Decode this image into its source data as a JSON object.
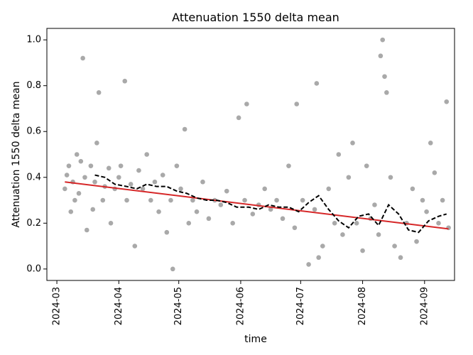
{
  "chart_data": {
    "type": "scatter",
    "title": "Attenuation 1550 delta mean",
    "xlabel": "time",
    "ylabel": "Attenuation 1550 delta mean",
    "x_tick_labels": [
      "2024-03",
      "2024-04",
      "2024-05",
      "2024-06",
      "2024-07",
      "2024-08",
      "2024-09"
    ],
    "x_ticks": [
      "2024-03-01",
      "2024-04-01",
      "2024-05-01",
      "2024-06-01",
      "2024-07-01",
      "2024-08-01",
      "2024-09-01"
    ],
    "y_tick_labels": [
      "0.0",
      "0.2",
      "0.4",
      "0.6",
      "0.8",
      "1.0"
    ],
    "y_ticks": [
      0.0,
      0.2,
      0.4,
      0.6,
      0.8,
      1.0
    ],
    "xlim": [
      "2024-02-25",
      "2024-09-16"
    ],
    "ylim": [
      -0.05,
      1.05
    ],
    "grid": false,
    "colors": {
      "points": "#a9a9a9",
      "trend": "#d62728",
      "rolling": "#000000"
    },
    "series": [
      {
        "kind": "points",
        "x": [
          "2024-03-05",
          "2024-03-06",
          "2024-03-07",
          "2024-03-08",
          "2024-03-09",
          "2024-03-10",
          "2024-03-11",
          "2024-03-12",
          "2024-03-13",
          "2024-03-14",
          "2024-03-15",
          "2024-03-16",
          "2024-03-18",
          "2024-03-19",
          "2024-03-20",
          "2024-03-21",
          "2024-03-22",
          "2024-03-24",
          "2024-03-25",
          "2024-03-27",
          "2024-03-28",
          "2024-03-30",
          "2024-04-01",
          "2024-04-02",
          "2024-04-04",
          "2024-04-05",
          "2024-04-07",
          "2024-04-09",
          "2024-04-11",
          "2024-04-13",
          "2024-04-15",
          "2024-04-17",
          "2024-04-19",
          "2024-04-21",
          "2024-04-23",
          "2024-04-25",
          "2024-04-27",
          "2024-04-28",
          "2024-04-30",
          "2024-05-02",
          "2024-05-04",
          "2024-05-06",
          "2024-05-08",
          "2024-05-10",
          "2024-05-13",
          "2024-05-16",
          "2024-05-19",
          "2024-05-22",
          "2024-05-25",
          "2024-05-28",
          "2024-05-31",
          "2024-06-03",
          "2024-06-04",
          "2024-06-07",
          "2024-06-10",
          "2024-06-13",
          "2024-06-16",
          "2024-06-19",
          "2024-06-22",
          "2024-06-25",
          "2024-06-28",
          "2024-06-29",
          "2024-07-02",
          "2024-07-05",
          "2024-07-08",
          "2024-07-09",
          "2024-07-10",
          "2024-07-12",
          "2024-07-15",
          "2024-07-18",
          "2024-07-20",
          "2024-07-22",
          "2024-07-25",
          "2024-07-27",
          "2024-07-29",
          "2024-08-01",
          "2024-08-03",
          "2024-08-05",
          "2024-08-07",
          "2024-08-09",
          "2024-08-10",
          "2024-08-11",
          "2024-08-12",
          "2024-08-13",
          "2024-08-15",
          "2024-08-17",
          "2024-08-20",
          "2024-08-23",
          "2024-08-26",
          "2024-08-28",
          "2024-08-31",
          "2024-09-02",
          "2024-09-04",
          "2024-09-06",
          "2024-09-08",
          "2024-09-10",
          "2024-09-12",
          "2024-09-13"
        ],
        "y": [
          0.35,
          0.41,
          0.45,
          0.25,
          0.38,
          0.3,
          0.5,
          0.33,
          0.47,
          0.92,
          0.4,
          0.17,
          0.45,
          0.26,
          0.38,
          0.55,
          0.77,
          0.3,
          0.36,
          0.44,
          0.2,
          0.35,
          0.4,
          0.45,
          0.82,
          0.3,
          0.37,
          0.1,
          0.43,
          0.35,
          0.5,
          0.3,
          0.38,
          0.25,
          0.41,
          0.16,
          0.3,
          0.0,
          0.45,
          0.35,
          0.61,
          0.2,
          0.3,
          0.25,
          0.38,
          0.22,
          0.3,
          0.28,
          0.34,
          0.2,
          0.66,
          0.3,
          0.72,
          0.24,
          0.28,
          0.35,
          0.26,
          0.3,
          0.22,
          0.45,
          0.18,
          0.72,
          0.3,
          0.02,
          0.26,
          0.81,
          0.05,
          0.1,
          0.35,
          0.2,
          0.5,
          0.15,
          0.4,
          0.55,
          0.2,
          0.08,
          0.45,
          0.22,
          0.28,
          0.15,
          0.93,
          1.0,
          0.84,
          0.77,
          0.4,
          0.1,
          0.05,
          0.2,
          0.35,
          0.12,
          0.3,
          0.25,
          0.55,
          0.42,
          0.2,
          0.3,
          0.73,
          0.18
        ]
      },
      {
        "kind": "trend",
        "x": [
          "2024-03-05",
          "2024-09-13"
        ],
        "y": [
          0.38,
          0.175
        ]
      },
      {
        "kind": "rolling",
        "x": [
          "2024-03-20",
          "2024-03-25",
          "2024-03-30",
          "2024-04-05",
          "2024-04-10",
          "2024-04-15",
          "2024-04-20",
          "2024-04-25",
          "2024-04-30",
          "2024-05-05",
          "2024-05-10",
          "2024-05-15",
          "2024-05-20",
          "2024-05-25",
          "2024-05-30",
          "2024-06-05",
          "2024-06-10",
          "2024-06-15",
          "2024-06-20",
          "2024-06-25",
          "2024-06-30",
          "2024-07-05",
          "2024-07-10",
          "2024-07-15",
          "2024-07-20",
          "2024-07-25",
          "2024-07-30",
          "2024-08-04",
          "2024-08-09",
          "2024-08-14",
          "2024-08-19",
          "2024-08-24",
          "2024-08-29",
          "2024-09-03",
          "2024-09-08",
          "2024-09-12"
        ],
        "y": [
          0.41,
          0.4,
          0.37,
          0.36,
          0.35,
          0.37,
          0.36,
          0.36,
          0.34,
          0.33,
          0.31,
          0.3,
          0.3,
          0.29,
          0.27,
          0.27,
          0.26,
          0.28,
          0.27,
          0.27,
          0.25,
          0.29,
          0.32,
          0.26,
          0.21,
          0.18,
          0.23,
          0.24,
          0.19,
          0.28,
          0.24,
          0.17,
          0.16,
          0.21,
          0.23,
          0.24
        ]
      }
    ]
  }
}
